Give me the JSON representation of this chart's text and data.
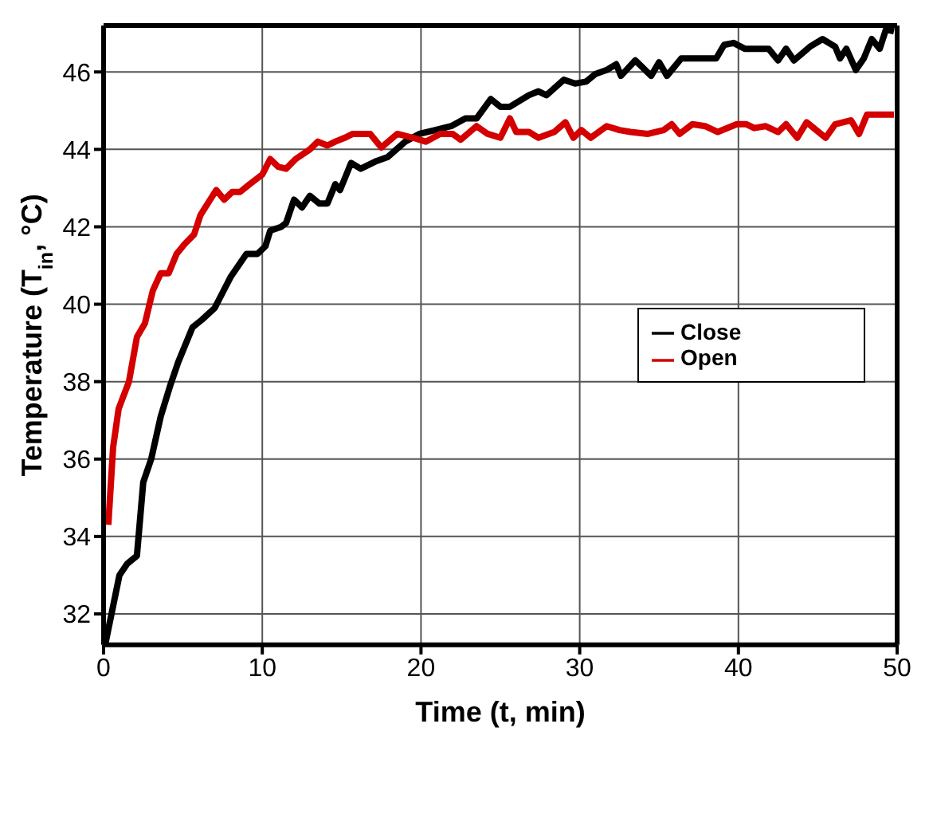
{
  "chart_data": {
    "type": "line",
    "xlabel": "Time (t, min)",
    "ylabel": "Temperature (T$_{in}$, °C)",
    "xlim": [
      0,
      50
    ],
    "xticks": [
      0,
      10,
      20,
      30,
      40,
      50
    ],
    "ylim": [
      31.2,
      47.2
    ],
    "yticks": [
      32,
      34,
      36,
      38,
      40,
      42,
      44,
      46
    ],
    "grid": true,
    "legend": "right",
    "marker": "none",
    "line_style": "solid",
    "series": [
      {
        "name": "Close",
        "color": "#000000",
        "x": [
          0.1,
          1,
          1.5,
          2.1,
          2.5,
          3,
          3.6,
          4.2,
          4.7,
          5.6,
          6.2,
          7,
          7.5,
          8,
          8.5,
          9,
          9.7,
          10.2,
          10.5,
          11.2,
          11.5,
          12,
          12.5,
          13,
          13.6,
          14.1,
          14.6,
          14.9,
          15.6,
          16.2,
          17.2,
          17.9,
          19,
          19.9,
          20.9,
          21.9,
          22.8,
          23.5,
          24.4,
          25,
          25.6,
          26.8,
          27.4,
          27.9,
          29,
          29.7,
          30.4,
          31,
          31.7,
          32.3,
          32.6,
          33.5,
          34.5,
          35,
          35.5,
          36.4,
          37.2,
          38.6,
          39.1,
          39.7,
          40.4,
          41.2,
          41.9,
          42.5,
          43,
          43.5,
          44.5,
          45.3,
          46.1,
          46.4,
          46.8,
          47.4,
          47.9,
          48.4,
          48.9,
          49.3,
          49.8
        ],
        "values": [
          31.2,
          33,
          33.3,
          33.5,
          35.4,
          36,
          37.1,
          37.9,
          38.5,
          39.4,
          39.6,
          39.9,
          40.3,
          40.7,
          41,
          41.3,
          41.3,
          41.5,
          41.9,
          42,
          42.1,
          42.7,
          42.5,
          42.8,
          42.6,
          42.6,
          43.1,
          42.95,
          43.65,
          43.5,
          43.7,
          43.8,
          44.2,
          44.4,
          44.5,
          44.6,
          44.8,
          44.8,
          45.3,
          45.1,
          45.1,
          45.4,
          45.5,
          45.4,
          45.8,
          45.7,
          45.75,
          45.95,
          46.05,
          46.2,
          45.9,
          46.3,
          45.9,
          46.25,
          45.9,
          46.35,
          46.35,
          46.35,
          46.7,
          46.75,
          46.6,
          46.6,
          46.6,
          46.3,
          46.6,
          46.3,
          46.65,
          46.85,
          46.65,
          46.35,
          46.6,
          46.05,
          46.35,
          46.85,
          46.6,
          47.1,
          47.05
        ]
      },
      {
        "name": "Open",
        "color": "#d40000",
        "x": [
          0.3,
          0.6,
          0.95,
          1.6,
          2.1,
          2.6,
          3.1,
          3.6,
          4.1,
          4.6,
          5.1,
          5.7,
          6.1,
          7.1,
          7.6,
          8.1,
          8.6,
          9.2,
          10,
          10.5,
          11,
          11.5,
          12.1,
          13,
          13.5,
          14.1,
          14.6,
          15.2,
          15.7,
          16.8,
          17.5,
          18.5,
          19.5,
          20.3,
          21.2,
          22,
          22.5,
          23.5,
          24.2,
          25,
          25.6,
          26,
          26.8,
          27.4,
          28.4,
          29.1,
          29.6,
          30.1,
          30.7,
          31.7,
          32.5,
          33.2,
          34.3,
          35.3,
          35.8,
          36.3,
          37.1,
          37.9,
          38.7,
          39.9,
          40.5,
          41,
          41.7,
          42.5,
          43,
          43.7,
          44.3,
          45.5,
          46.1,
          47.1,
          47.6,
          48.1,
          49.8
        ],
        "values": [
          34.3,
          36.3,
          37.3,
          38,
          39.15,
          39.5,
          40.35,
          40.8,
          40.8,
          41.3,
          41.55,
          41.8,
          42.3,
          42.95,
          42.7,
          42.9,
          42.9,
          43.1,
          43.35,
          43.75,
          43.55,
          43.5,
          43.75,
          44,
          44.2,
          44.1,
          44.2,
          44.3,
          44.4,
          44.4,
          44.05,
          44.4,
          44.3,
          44.2,
          44.4,
          44.4,
          44.25,
          44.6,
          44.4,
          44.3,
          44.8,
          44.45,
          44.45,
          44.3,
          44.45,
          44.7,
          44.3,
          44.5,
          44.3,
          44.6,
          44.5,
          44.45,
          44.4,
          44.5,
          44.65,
          44.4,
          44.65,
          44.6,
          44.45,
          44.65,
          44.65,
          44.55,
          44.6,
          44.45,
          44.65,
          44.3,
          44.7,
          44.3,
          44.65,
          44.75,
          44.4,
          44.9,
          44.9
        ]
      }
    ]
  }
}
